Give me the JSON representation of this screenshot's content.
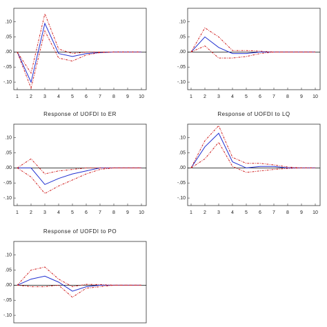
{
  "chart_data": [
    {
      "type": "line",
      "x": [
        1,
        2,
        3,
        4,
        5,
        6,
        7,
        8,
        9,
        10
      ],
      "xlim": [
        0.75,
        10.35
      ],
      "ylim": [
        -0.125,
        0.145
      ],
      "xticks": [
        1,
        2,
        3,
        4,
        5,
        6,
        7,
        8,
        9,
        10
      ],
      "yticks": [
        {
          "value": -0.1,
          "label": "-.10"
        },
        {
          "value": -0.05,
          "label": "-.05"
        },
        {
          "value": 0,
          "label": ".00"
        },
        {
          "value": 0.05,
          "label": ".05"
        },
        {
          "value": 0.1,
          "label": ".10"
        }
      ],
      "series": [
        {
          "color": "#1f2fd0",
          "style": "solid",
          "values": [
            0,
            -0.1,
            0.095,
            -0.005,
            -0.015,
            -0.005,
            -0.002,
            0,
            0,
            0
          ]
        },
        {
          "color": "#d02020",
          "style": "dashed",
          "values": [
            0,
            -0.07,
            0.127,
            0.01,
            -0.005,
            0,
            0,
            0,
            0,
            0
          ]
        },
        {
          "color": "#d02020",
          "style": "dashed",
          "values": [
            0,
            -0.12,
            0.07,
            -0.02,
            -0.03,
            -0.01,
            -0.002,
            0,
            0,
            0
          ]
        }
      ]
    },
    {
      "type": "line",
      "x": [
        1,
        2,
        3,
        4,
        5,
        6,
        7,
        8,
        9,
        10
      ],
      "xlim": [
        0.75,
        10.35
      ],
      "ylim": [
        -0.125,
        0.145
      ],
      "xticks": [
        1,
        2,
        3,
        4,
        5,
        6,
        7,
        8,
        9,
        10
      ],
      "yticks": [
        {
          "value": -0.1,
          "label": "-.10"
        },
        {
          "value": -0.05,
          "label": "-.05"
        },
        {
          "value": 0,
          "label": ".00"
        },
        {
          "value": 0.05,
          "label": ".05"
        },
        {
          "value": 0.1,
          "label": ".10"
        }
      ],
      "series": [
        {
          "color": "#1f2fd0",
          "style": "solid",
          "values": [
            0,
            0.05,
            0.015,
            -0.005,
            -0.005,
            0,
            0,
            0,
            0,
            0
          ]
        },
        {
          "color": "#d02020",
          "style": "dashed",
          "values": [
            0,
            0.08,
            0.05,
            0.005,
            0.005,
            0.003,
            0,
            0,
            0,
            0
          ]
        },
        {
          "color": "#d02020",
          "style": "dashed",
          "values": [
            0,
            0.02,
            -0.02,
            -0.02,
            -0.015,
            -0.005,
            0,
            0,
            0,
            0
          ]
        }
      ]
    },
    {
      "type": "line",
      "title": "Response of UOFDI to ER",
      "x": [
        1,
        2,
        3,
        4,
        5,
        6,
        7,
        8,
        9,
        10
      ],
      "xlim": [
        0.75,
        10.35
      ],
      "ylim": [
        -0.125,
        0.145
      ],
      "xticks": [
        1,
        2,
        3,
        4,
        5,
        6,
        7,
        8,
        9,
        10
      ],
      "yticks": [
        {
          "value": -0.1,
          "label": "-.10"
        },
        {
          "value": -0.05,
          "label": "-.05"
        },
        {
          "value": 0,
          "label": ".00"
        },
        {
          "value": 0.05,
          "label": ".05"
        },
        {
          "value": 0.1,
          "label": ".10"
        }
      ],
      "series": [
        {
          "color": "#1f2fd0",
          "style": "solid",
          "values": [
            0,
            0,
            -0.055,
            -0.035,
            -0.02,
            -0.01,
            0,
            0,
            0,
            0
          ]
        },
        {
          "color": "#d02020",
          "style": "dashed",
          "values": [
            0,
            0.03,
            -0.02,
            -0.01,
            -0.005,
            0,
            0,
            0,
            0,
            0
          ]
        },
        {
          "color": "#d02020",
          "style": "dashed",
          "values": [
            0,
            -0.03,
            -0.085,
            -0.06,
            -0.04,
            -0.02,
            -0.005,
            0,
            0,
            0
          ]
        }
      ]
    },
    {
      "type": "line",
      "title": "Response of UOFDI to LQ",
      "x": [
        1,
        2,
        3,
        4,
        5,
        6,
        7,
        8,
        9,
        10
      ],
      "xlim": [
        0.75,
        10.35
      ],
      "ylim": [
        -0.125,
        0.145
      ],
      "xticks": [
        1,
        2,
        3,
        4,
        5,
        6,
        7,
        8,
        9,
        10
      ],
      "yticks": [
        {
          "value": -0.1,
          "label": "-.10"
        },
        {
          "value": -0.05,
          "label": "-.05"
        },
        {
          "value": 0,
          "label": ".00"
        },
        {
          "value": 0.05,
          "label": ".05"
        },
        {
          "value": 0.1,
          "label": ".10"
        }
      ],
      "series": [
        {
          "color": "#1f2fd0",
          "style": "solid",
          "values": [
            0,
            0.07,
            0.115,
            0.02,
            0,
            0.005,
            0.005,
            0,
            0,
            0
          ]
        },
        {
          "color": "#d02020",
          "style": "dashed",
          "values": [
            0,
            0.09,
            0.14,
            0.035,
            0.015,
            0.015,
            0.01,
            0.003,
            0,
            0
          ]
        },
        {
          "color": "#d02020",
          "style": "dashed",
          "values": [
            0,
            0.03,
            0.085,
            0.005,
            -0.015,
            -0.01,
            -0.005,
            -0.002,
            0,
            0
          ]
        }
      ]
    },
    {
      "type": "line",
      "title": "Response of UOFDI to PO",
      "x": [
        1,
        2,
        3,
        4,
        5,
        6,
        7,
        8,
        9,
        10
      ],
      "xlim": [
        0.75,
        10.35
      ],
      "ylim": [
        -0.125,
        0.145
      ],
      "yticks": [
        {
          "value": -0.1,
          "label": "-.10"
        },
        {
          "value": -0.05,
          "label": "-.05"
        },
        {
          "value": 0,
          "label": ".00"
        },
        {
          "value": 0.05,
          "label": ".05"
        },
        {
          "value": 0.1,
          "label": ".10"
        }
      ],
      "series": [
        {
          "color": "#1f2fd0",
          "style": "solid",
          "values": [
            0,
            0.02,
            0.03,
            0.01,
            -0.02,
            -0.005,
            0,
            0,
            0,
            0
          ]
        },
        {
          "color": "#d02020",
          "style": "dashed",
          "values": [
            0,
            0.05,
            0.06,
            0.02,
            -0.005,
            0.003,
            0.002,
            0,
            0,
            0
          ]
        },
        {
          "color": "#d02020",
          "style": "dashed",
          "values": [
            0,
            -0.005,
            -0.005,
            0,
            -0.04,
            -0.01,
            -0.005,
            0,
            0,
            0
          ]
        }
      ]
    }
  ]
}
